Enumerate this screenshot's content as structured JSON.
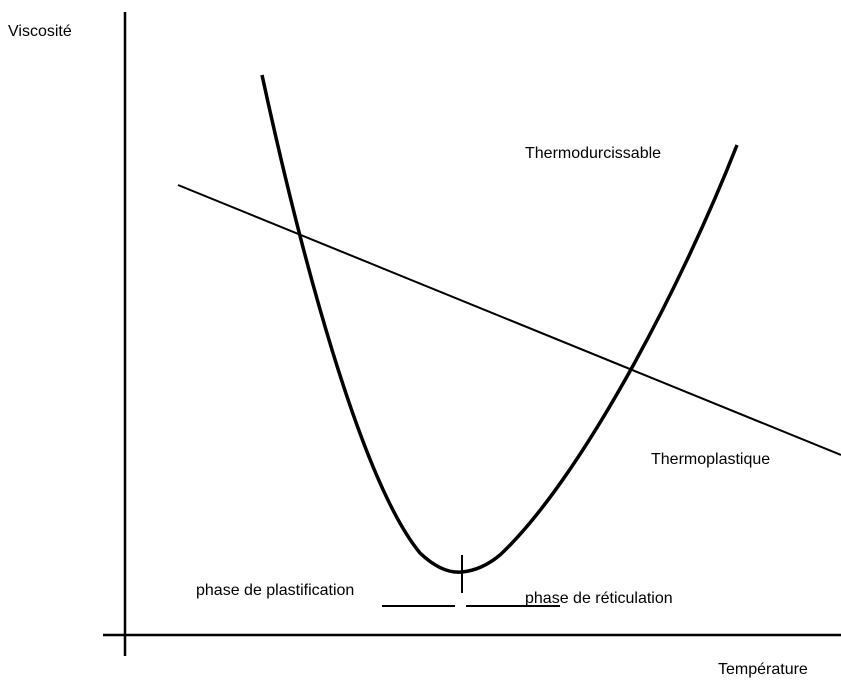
{
  "axes": {
    "y_label": "Viscosité",
    "x_label": "Température"
  },
  "curves": {
    "thermoset": "Thermodurcissable",
    "thermoplastic": "Thermoplastique"
  },
  "phases": {
    "plastification": "phase de plastification",
    "reticulation": "phase de réticulation"
  }
}
